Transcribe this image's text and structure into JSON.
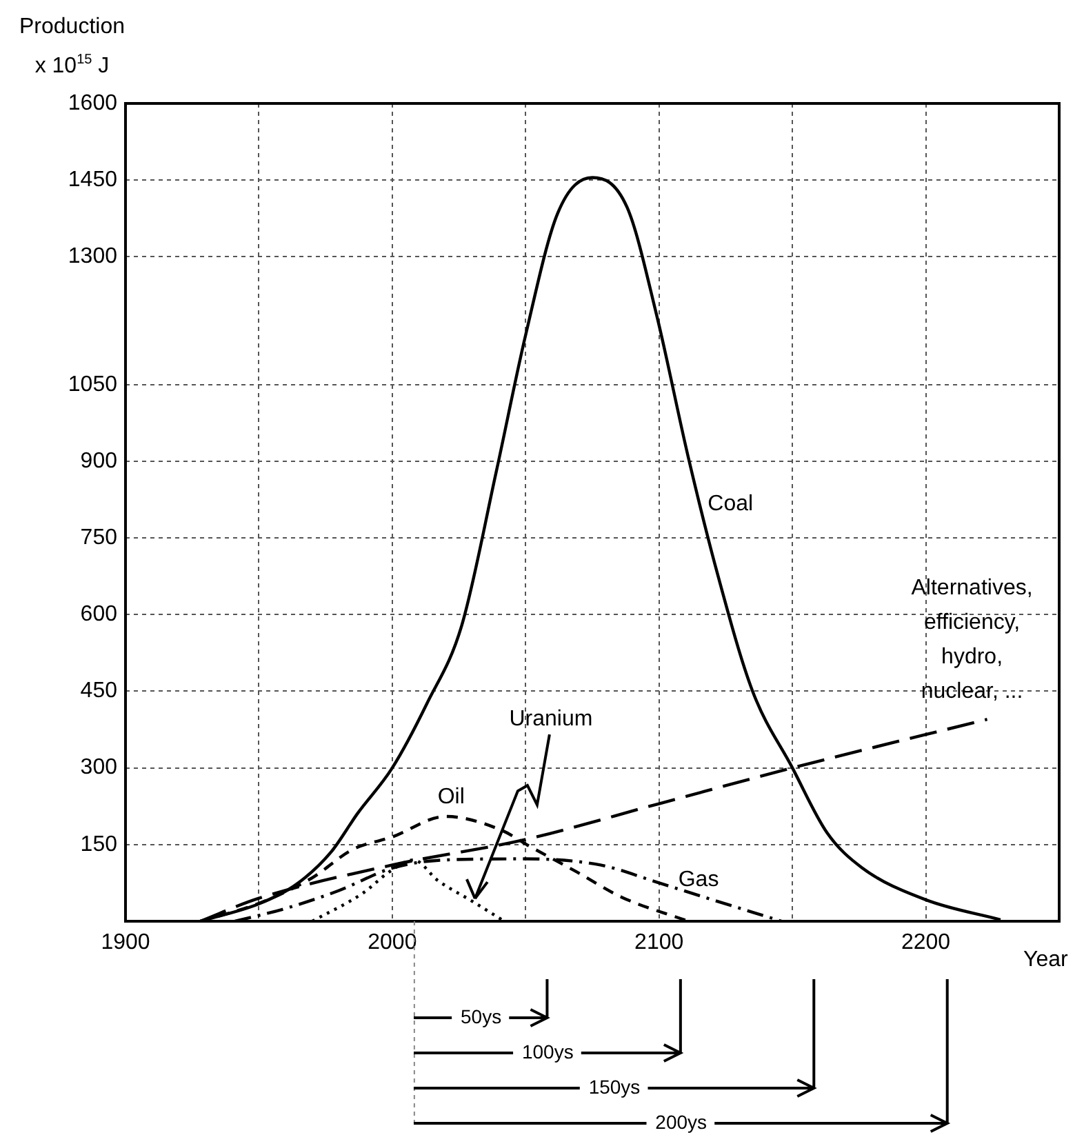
{
  "chart_data": {
    "type": "line",
    "ylabel": "Production\nx 10$^{15}$ J",
    "xlabel": "Year",
    "xlim": [
      1900,
      2250
    ],
    "xticks": [
      1900,
      {
        "value": 1950,
        "label": null
      },
      2000,
      {
        "value": 2050,
        "label": null
      },
      2100,
      {
        "value": 2150,
        "label": null
      },
      2200
    ],
    "ylim": [
      0,
      1600
    ],
    "yticks": [
      150,
      300,
      450,
      600,
      750,
      900,
      1050,
      1300,
      1450,
      1600
    ],
    "grid": true,
    "marker": "none",
    "series": [
      {
        "name": "Coal",
        "color": "#000000",
        "line_style": "solid",
        "x": [
          1928,
          1950,
          1964,
          1977,
          1987,
          2000,
          2013,
          2026,
          2039,
          2050,
          2062,
          2075,
          2088,
          2099,
          2111,
          2122,
          2135,
          2150,
          2163,
          2176,
          2200,
          2228
        ],
        "values": [
          0,
          34,
          72,
          135,
          211,
          300,
          426,
          578,
          880,
          1147,
          1385,
          1455,
          1397,
          1188,
          907,
          678,
          451,
          300,
          173,
          105,
          42,
          3
        ]
      },
      {
        "name": "Oil",
        "color": "#000000",
        "line_style": "dashed",
        "x": [
          1928,
          1950,
          1970,
          1985,
          2000,
          2020,
          2041,
          2051,
          2069,
          2086,
          2111
        ],
        "values": [
          0,
          35,
          85,
          140,
          165,
          205,
          178,
          148,
          97,
          47,
          0
        ]
      },
      {
        "name": "Gas",
        "color": "#000000",
        "line_style": "dashdot",
        "x": [
          1941,
          1960,
          1980,
          2000,
          2020,
          2050,
          2078,
          2100,
          2117,
          2146
        ],
        "values": [
          0,
          25,
          60,
          104,
          120,
          122,
          110,
          75,
          47,
          0
        ]
      },
      {
        "name": "Uranium",
        "color": "#000000",
        "line_style": "dotted",
        "x": [
          1970,
          1989,
          1999,
          2008,
          2017,
          2030,
          2042
        ],
        "values": [
          0,
          55,
          97,
          120,
          80,
          39,
          0
        ]
      },
      {
        "name": "Alternatives,\nefficiency,\nhydro,\nnuclear, ...",
        "color": "#000000",
        "line_style": "longdash",
        "x": [
          1928,
          1950,
          2000,
          2050,
          2100,
          2150,
          2223
        ],
        "values": [
          0,
          45,
          110,
          160,
          230,
          300,
          395
        ]
      }
    ],
    "annotations": [
      "50ys",
      "100ys",
      "150ys",
      "200ys"
    ]
  }
}
